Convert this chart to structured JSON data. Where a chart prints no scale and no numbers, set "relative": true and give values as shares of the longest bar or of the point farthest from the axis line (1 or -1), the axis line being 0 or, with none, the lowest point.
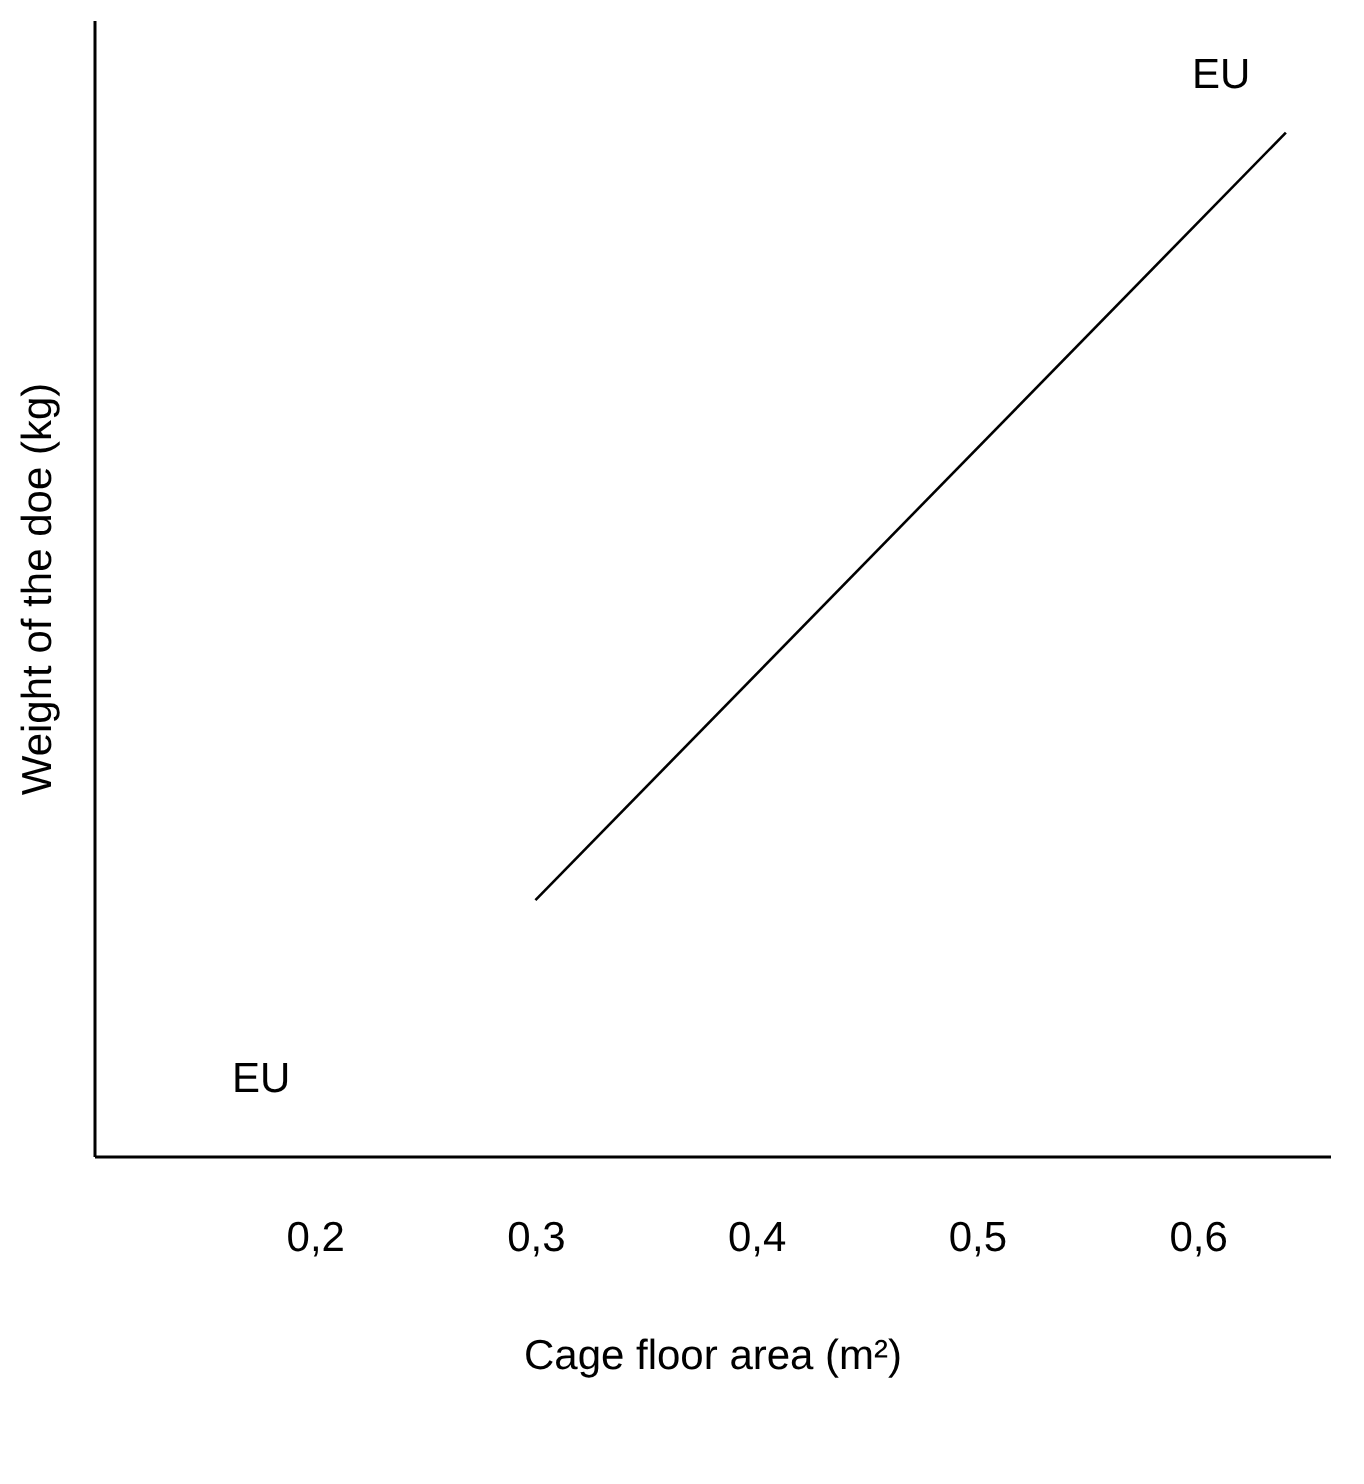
{
  "chart_data": {
    "type": "line",
    "xlabel": "Cage floor area (m²)",
    "ylabel": "Weight of the doe (kg)",
    "relative": true,
    "x": [
      0.3,
      0.64
    ],
    "series": [
      {
        "color": "#000000",
        "values": [
          0.25,
          1
        ]
      }
    ],
    "xlim": [
      0.1,
      0.66
    ],
    "xticks": [
      {
        "value": 0.2,
        "label": "0,2"
      },
      {
        "value": 0.3,
        "label": "0,3"
      },
      {
        "value": 0.4,
        "label": "0,4"
      },
      {
        "value": 0.5,
        "label": "0,5"
      },
      {
        "value": 0.6,
        "label": "0,6"
      }
    ],
    "annotations": [
      "EU",
      "EU"
    ],
    "grid": false,
    "marker": "none",
    "line_style": "solid"
  }
}
